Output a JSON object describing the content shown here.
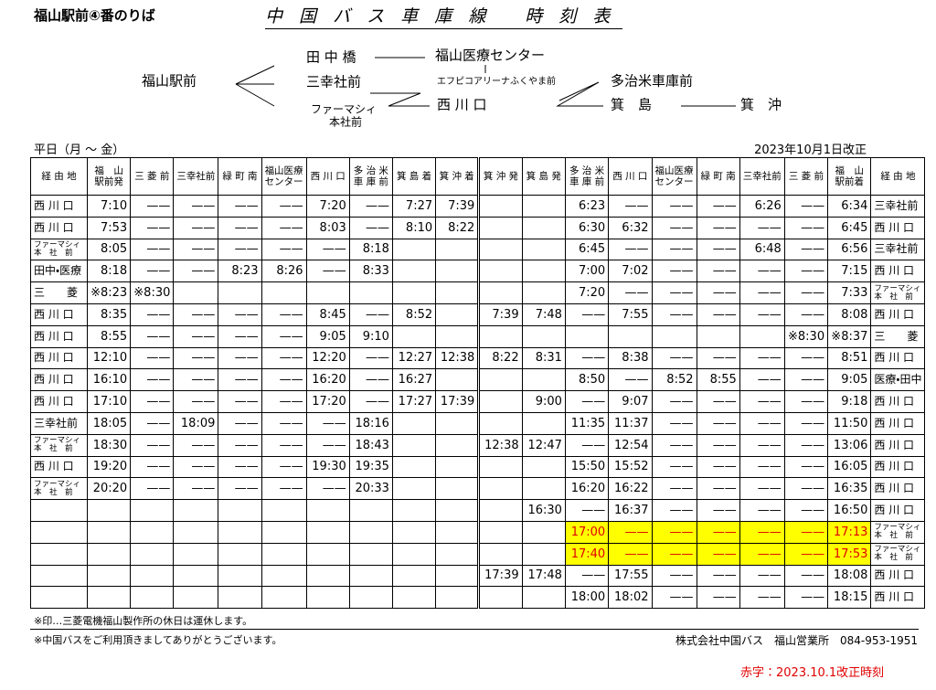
{
  "header": {
    "stop": "福山駅前④番のりば",
    "title": "中 国 バ ス 車 庫 線　 時 刻 表"
  },
  "route": {
    "nodes": [
      "福山駅前",
      "田 中 橋",
      "三幸社前",
      [
        "ファーマシィ",
        "本社前"
      ],
      "福山医療センター",
      "エフピコアリーナふくやま前",
      "西 川 口",
      "多治米車庫前",
      "箕　島",
      "箕　沖"
    ]
  },
  "schedule": {
    "service": "平日（月 ～ 金）",
    "revised": "2023年10月1日改正"
  },
  "table": {
    "headers": [
      [
        "経 由 地"
      ],
      [
        "福　山",
        "駅前発"
      ],
      [
        "三 菱 前"
      ],
      [
        "三幸社前"
      ],
      [
        "緑 町 南"
      ],
      [
        "福山医療",
        "センター"
      ],
      [
        "西 川 口"
      ],
      [
        "多 治 米",
        "車 庫 前"
      ],
      [
        "箕 島 着"
      ],
      [
        "箕 沖 着"
      ],
      [
        "箕 沖 発"
      ],
      [
        "箕 島 発"
      ],
      [
        "多 治 米",
        "車 庫 前"
      ],
      [
        "西 川 口"
      ],
      [
        "福山医療",
        "センター"
      ],
      [
        "緑 町 南"
      ],
      [
        "三幸社前"
      ],
      [
        "三 菱 前"
      ],
      [
        "福　山",
        "駅前着"
      ],
      [
        "経 由 地"
      ]
    ],
    "rows": [
      [
        "西 川 口",
        "7:10",
        "——",
        "——",
        "——",
        "——",
        "7:20",
        "——",
        "7:27",
        "7:39",
        null,
        null,
        "6:23",
        "——",
        "——",
        "——",
        "6:26",
        "——",
        "6:34",
        "三幸社前"
      ],
      [
        "西 川 口",
        "7:53",
        "——",
        "——",
        "——",
        "——",
        "8:03",
        "——",
        "8:10",
        "8:22",
        null,
        null,
        "6:30",
        "6:32",
        "——",
        "——",
        "——",
        "——",
        "6:45",
        "西 川 口"
      ],
      [
        [
          "ファーマシィ",
          "本　社　前"
        ],
        "8:05",
        "——",
        "——",
        "——",
        "——",
        "——",
        "8:18",
        null,
        null,
        null,
        null,
        "6:45",
        "——",
        "——",
        "——",
        "6:48",
        "——",
        "6:56",
        "三幸社前"
      ],
      [
        "田中・医療",
        "8:18",
        "——",
        "——",
        "8:23",
        "8:26",
        "——",
        "8:33",
        null,
        null,
        null,
        null,
        "7:00",
        "7:02",
        "——",
        "——",
        "——",
        "——",
        "7:15",
        "西 川 口"
      ],
      [
        "三　　菱",
        "※8:23",
        "※8:30",
        null,
        null,
        null,
        null,
        null,
        null,
        null,
        null,
        null,
        "7:20",
        "——",
        "——",
        "——",
        "——",
        "——",
        "7:33",
        [
          "ファーマシィ",
          "本　社　前"
        ]
      ],
      [
        "西 川 口",
        "8:35",
        "——",
        "——",
        "——",
        "——",
        "8:45",
        "——",
        "8:52",
        null,
        "7:39",
        "7:48",
        "——",
        "7:55",
        "——",
        "——",
        "——",
        "——",
        "8:08",
        "西 川 口"
      ],
      [
        "西 川 口",
        "8:55",
        "——",
        "——",
        "——",
        "——",
        "9:05",
        "9:10",
        null,
        null,
        null,
        null,
        null,
        null,
        null,
        null,
        null,
        "※8:30",
        "※8:37",
        "三　　菱"
      ],
      [
        "西 川 口",
        "12:10",
        "——",
        "——",
        "——",
        "——",
        "12:20",
        "——",
        "12:27",
        "12:38",
        "8:22",
        "8:31",
        "——",
        "8:38",
        "——",
        "——",
        "——",
        "——",
        "8:51",
        "西 川 口"
      ],
      [
        "西 川 口",
        "16:10",
        "——",
        "——",
        "——",
        "——",
        "16:20",
        "——",
        "16:27",
        null,
        null,
        null,
        "8:50",
        "——",
        "8:52",
        "8:55",
        "——",
        "——",
        "9:05",
        "医療・田中"
      ],
      [
        "西 川 口",
        "17:10",
        "——",
        "——",
        "——",
        "——",
        "17:20",
        "——",
        "17:27",
        "17:39",
        null,
        "9:00",
        "——",
        "9:07",
        "——",
        "——",
        "——",
        "——",
        "9:18",
        "西 川 口"
      ],
      [
        "三幸社前",
        "18:05",
        "——",
        "18:09",
        "——",
        "——",
        "——",
        "18:16",
        null,
        null,
        null,
        null,
        "11:35",
        "11:37",
        "——",
        "——",
        "——",
        "——",
        "11:50",
        "西 川 口"
      ],
      [
        [
          "ファーマシィ",
          "本　社　前"
        ],
        "18:30",
        "——",
        "——",
        "——",
        "——",
        "——",
        "18:43",
        null,
        null,
        "12:38",
        "12:47",
        "——",
        "12:54",
        "——",
        "——",
        "——",
        "——",
        "13:06",
        "西 川 口"
      ],
      [
        "西 川 口",
        "19:20",
        "——",
        "——",
        "——",
        "——",
        "19:30",
        "19:35",
        null,
        null,
        null,
        null,
        "15:50",
        "15:52",
        "——",
        "——",
        "——",
        "——",
        "16:05",
        "西 川 口"
      ],
      [
        [
          "ファーマシィ",
          "本　社　前"
        ],
        "20:20",
        "——",
        "——",
        "——",
        "——",
        "——",
        "20:33",
        null,
        null,
        null,
        null,
        "16:20",
        "16:22",
        "——",
        "——",
        "——",
        "——",
        "16:35",
        "西 川 口"
      ],
      [
        null,
        null,
        null,
        null,
        null,
        null,
        null,
        null,
        null,
        null,
        null,
        "16:30",
        "——",
        "16:37",
        "——",
        "——",
        "——",
        "——",
        "16:50",
        "西 川 口"
      ],
      [
        null,
        null,
        null,
        null,
        null,
        null,
        null,
        null,
        null,
        null,
        null,
        null,
        "17:00",
        "——",
        "——",
        "——",
        "——",
        "——",
        "17:13",
        [
          "ファーマシィ",
          "本　社　前"
        ]
      ],
      [
        null,
        null,
        null,
        null,
        null,
        null,
        null,
        null,
        null,
        null,
        null,
        null,
        "17:40",
        "——",
        "——",
        "——",
        "——",
        "——",
        "17:53",
        [
          "ファーマシィ",
          "本　社　前"
        ]
      ],
      [
        null,
        null,
        null,
        null,
        null,
        null,
        null,
        null,
        null,
        null,
        "17:39",
        "17:48",
        "——",
        "17:55",
        "——",
        "——",
        "——",
        "——",
        "18:08",
        "西 川 口"
      ],
      [
        null,
        null,
        null,
        null,
        null,
        null,
        null,
        null,
        null,
        null,
        null,
        null,
        "18:00",
        "18:02",
        "——",
        "——",
        "——",
        "——",
        "18:15",
        "西 川 口"
      ]
    ],
    "highlight": {
      "rows": [
        15,
        16
      ],
      "cols": [
        12,
        18
      ],
      "color": "#ffff00",
      "text_color": "#e00000"
    }
  },
  "footer": {
    "note": "※印…三菱電機福山製作所の休日は運休します。",
    "thanks": "※中国バスをご利用頂きましてありがとうございます。",
    "company": "株式会社中国バス　福山営業所　084-953-1951",
    "red_note": "赤字：2023.10.1改正時刻"
  }
}
